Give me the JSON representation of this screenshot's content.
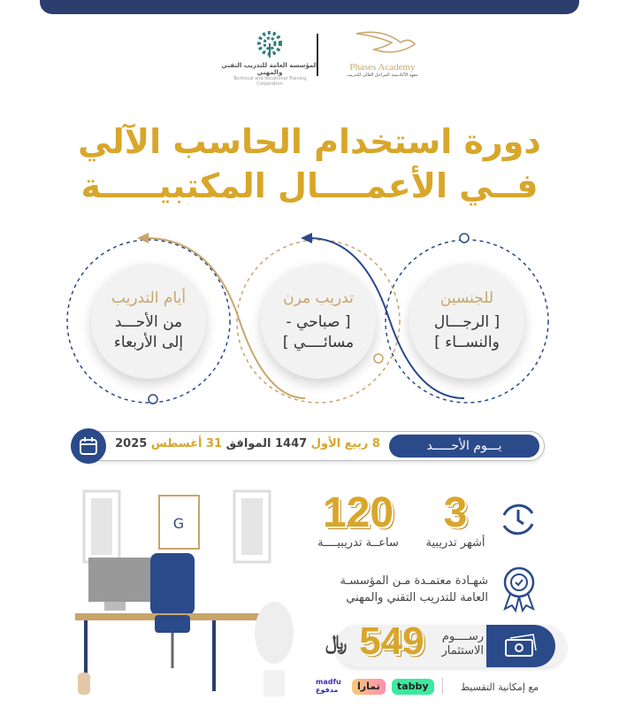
{
  "header": {
    "left_logo_text": "المؤسسة العامة للتدريب التقني والمهني",
    "left_logo_subtext": "Technical and Vocational Training Corporation",
    "right_logo_text": "Phases Academy",
    "right_logo_subtext": "معهد الأكاديمية المراحل العالي للتدريب"
  },
  "title": {
    "line1": "دورة استخدام الحاسب الآلي",
    "line2": "فــي الأعمــــال المكتبيـــــة"
  },
  "features": [
    {
      "heading": "للجنسين",
      "line1": "[ الرجـــال",
      "line2": "والنســاء ]"
    },
    {
      "heading": "تدريب مرن",
      "line1": "[ صباحي -",
      "line2": "مسائــــي ]"
    },
    {
      "heading": "أيام التدريب",
      "line1": "من الأحـــد",
      "line2": "إلى الأربعاء"
    }
  ],
  "date": {
    "day": "يـــوم الأحـــــد",
    "hijri_day": "8 ربيع الأول",
    "hijri_year": "1447 الموافق",
    "greg_day": "31 أغسطس",
    "greg_year": "2025"
  },
  "stats": {
    "months_value": "3",
    "months_label": "أشهر تدريبية",
    "hours_value": "120",
    "hours_label": "ساعــة تدريبيــــة"
  },
  "certificate": {
    "line1": "شهـادة معتمـدة مـن المؤسسـة",
    "line2": "العامة للتدريب التقني والمهني"
  },
  "price": {
    "label1": "رســــوم",
    "label2": "الاستثمار",
    "value": "549",
    "currency": "﷼"
  },
  "installments": {
    "label": "مع إمكانية التقسيط",
    "providers": [
      "tabby",
      "تمارا",
      "madfu مدفوع"
    ]
  },
  "colors": {
    "gold": "#d8a62a",
    "navy": "#2b4a8a",
    "tan": "#c8a56a"
  }
}
